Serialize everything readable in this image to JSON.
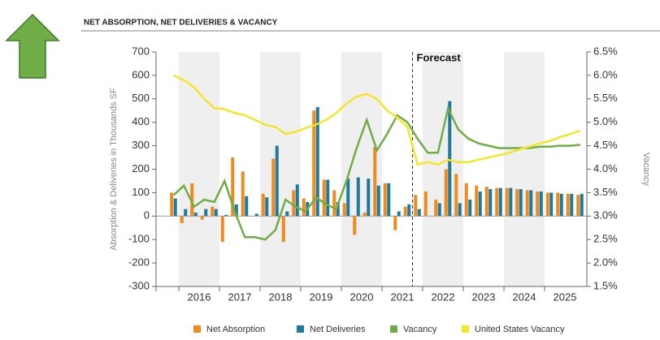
{
  "chart_data": {
    "type": "bar_line",
    "title": "NET ABSORPTION, NET DELIVERIES & VACANCY",
    "y_label": "Absorption & Deliveries in Thousands SF",
    "y2_label": "Vacancy",
    "annotation": "Forecast",
    "categories": [
      null,
      "2016",
      null,
      null,
      null,
      "2017",
      null,
      null,
      null,
      "2018",
      null,
      null,
      null,
      "2019",
      null,
      null,
      null,
      "2020",
      null,
      null,
      null,
      "2021",
      null,
      null,
      null,
      "2022",
      null,
      null,
      null,
      "2023",
      null,
      null,
      null,
      "2024",
      null,
      null,
      null,
      "2025",
      null,
      null,
      null
    ],
    "series": [
      {
        "name": "Net Absorption",
        "color": "#ee8a1f",
        "kind": "bar",
        "values": [
          100,
          -30,
          140,
          -15,
          40,
          -110,
          250,
          190,
          0,
          95,
          245,
          -110,
          110,
          75,
          450,
          155,
          110,
          55,
          -80,
          15,
          295,
          140,
          -60,
          40,
          90,
          105,
          70,
          200,
          180,
          140,
          130,
          125,
          120,
          120,
          115,
          110,
          105,
          100,
          100,
          95,
          90
        ]
      },
      {
        "name": "Net Deliveries",
        "color": "#1f7a9c",
        "kind": "bar",
        "values": [
          75,
          30,
          15,
          30,
          30,
          5,
          50,
          85,
          10,
          80,
          300,
          20,
          135,
          60,
          465,
          155,
          60,
          160,
          165,
          160,
          130,
          140,
          20,
          50,
          30,
          0,
          55,
          490,
          55,
          70,
          105,
          115,
          120,
          120,
          115,
          110,
          105,
          100,
          95,
          95,
          95
        ]
      },
      {
        "name": "Vacancy",
        "color": "#70ad47",
        "kind": "line",
        "axis": "y2",
        "values": [
          3.45,
          3.65,
          3.2,
          3.35,
          3.3,
          3.75,
          3.1,
          2.55,
          2.55,
          2.5,
          2.7,
          3.35,
          3.2,
          3.1,
          3.4,
          3.25,
          3.15,
          3.75,
          4.45,
          5.05,
          4.4,
          4.75,
          5.15,
          5.0,
          4.65,
          4.35,
          4.35,
          5.3,
          4.85,
          4.65,
          4.55,
          4.5,
          4.45,
          4.45,
          4.45,
          4.45,
          4.48,
          4.48,
          4.5,
          4.5,
          4.52
        ]
      },
      {
        "name": "United States Vacancy",
        "color": "#f2e62a",
        "kind": "line",
        "axis": "y2",
        "values": [
          6.0,
          5.9,
          5.75,
          5.5,
          5.3,
          5.28,
          5.2,
          5.15,
          5.05,
          4.95,
          4.9,
          4.75,
          4.8,
          4.88,
          4.95,
          5.05,
          5.2,
          5.4,
          5.55,
          5.6,
          5.5,
          5.25,
          5.1,
          4.9,
          4.1,
          4.15,
          4.1,
          4.2,
          4.15,
          4.15,
          4.2,
          4.25,
          4.3,
          4.35,
          4.42,
          4.48,
          4.55,
          4.6,
          4.68,
          4.75,
          4.82
        ]
      }
    ],
    "ylim": [
      -300,
      700
    ],
    "yticks": [
      -300,
      -200,
      -100,
      0,
      100,
      200,
      300,
      400,
      500,
      600,
      700
    ],
    "y2lim": [
      1.5,
      6.5
    ],
    "y2ticks": [
      {
        "value": 1.5,
        "label": "1.5%"
      },
      {
        "value": 2.0,
        "label": "2.0%"
      },
      {
        "value": 2.5,
        "label": "2.5%"
      },
      {
        "value": 3.0,
        "label": "3.0%"
      },
      {
        "value": 3.5,
        "label": "3.5%"
      },
      {
        "value": 4.0,
        "label": "4.0%"
      },
      {
        "value": 4.5,
        "label": "4.5%"
      },
      {
        "value": 5.0,
        "label": "5.0%"
      },
      {
        "value": 5.5,
        "label": "5.5%"
      },
      {
        "value": 6.0,
        "label": "6.0%"
      },
      {
        "value": 6.5,
        "label": "6.5%"
      }
    ],
    "legend": "bottom"
  }
}
